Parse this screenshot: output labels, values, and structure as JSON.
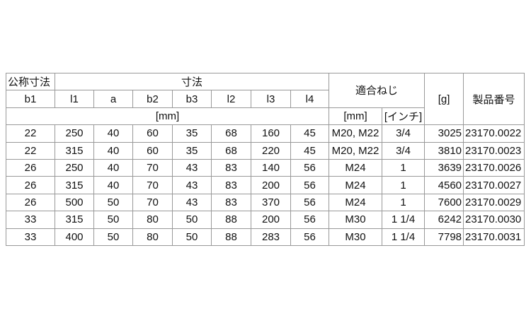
{
  "header": {
    "nominal": "公称寸法",
    "dimensions": "寸法",
    "thread": "適合ねじ",
    "weight": "[g]",
    "product_no": "製品番号",
    "cols": [
      "b1",
      "l1",
      "a",
      "b2",
      "b3",
      "l2",
      "l3",
      "l4"
    ],
    "unit_mm": "[mm]",
    "thread_mm": "[mm]",
    "thread_inch": "[インチ]"
  },
  "rows": [
    [
      "22",
      "250",
      "40",
      "60",
      "35",
      "68",
      "160",
      "45",
      "M20, M22",
      "3/4",
      "3025",
      "23170.0022"
    ],
    [
      "22",
      "315",
      "40",
      "60",
      "35",
      "68",
      "220",
      "45",
      "M20, M22",
      "3/4",
      "3810",
      "23170.0023"
    ],
    [
      "26",
      "250",
      "40",
      "70",
      "43",
      "83",
      "140",
      "56",
      "M24",
      "1",
      "3639",
      "23170.0026"
    ],
    [
      "26",
      "315",
      "40",
      "70",
      "43",
      "83",
      "200",
      "56",
      "M24",
      "1",
      "4560",
      "23170.0027"
    ],
    [
      "26",
      "500",
      "50",
      "70",
      "43",
      "83",
      "370",
      "56",
      "M24",
      "1",
      "7600",
      "23170.0029"
    ],
    [
      "33",
      "315",
      "50",
      "80",
      "50",
      "88",
      "200",
      "56",
      "M30",
      "1 1/4",
      "6242",
      "23170.0030"
    ],
    [
      "33",
      "400",
      "50",
      "80",
      "50",
      "88",
      "283",
      "56",
      "M30",
      "1 1/4",
      "7798",
      "23170.0031"
    ]
  ]
}
